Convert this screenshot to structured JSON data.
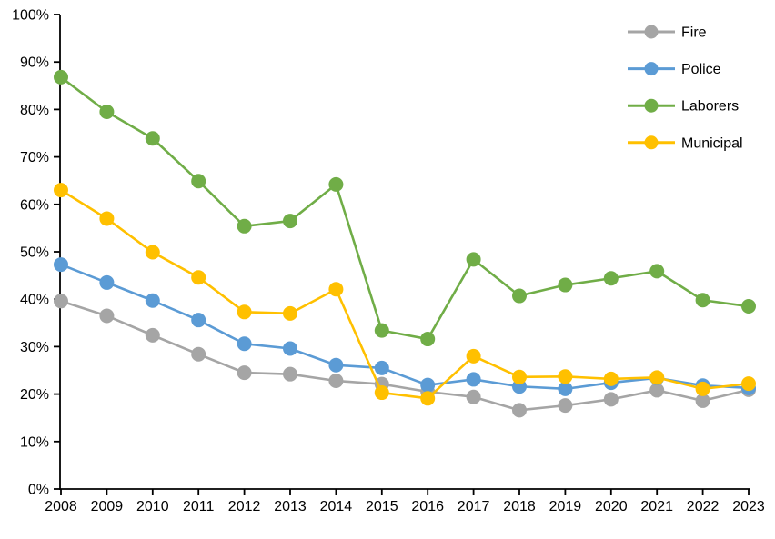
{
  "chart_data": {
    "type": "line",
    "title": "",
    "xlabel": "",
    "ylabel": "",
    "categories": [
      "2008",
      "2009",
      "2010",
      "2011",
      "2012",
      "2013",
      "2014",
      "2015",
      "2016",
      "2017",
      "2018",
      "2019",
      "2020",
      "2021",
      "2022",
      "2023"
    ],
    "series": [
      {
        "name": "Fire",
        "color": "#A5A5A5",
        "values": [
          39.6,
          36.5,
          32.4,
          28.4,
          24.5,
          24.2,
          22.8,
          22.1,
          20.5,
          19.4,
          16.6,
          17.6,
          18.9,
          20.8,
          18.6,
          20.9
        ]
      },
      {
        "name": "Police",
        "color": "#5B9BD5",
        "values": [
          47.3,
          43.5,
          39.7,
          35.6,
          30.6,
          29.6,
          26.1,
          25.5,
          21.9,
          23.1,
          21.6,
          21.1,
          22.4,
          23.4,
          21.8,
          21.3
        ]
      },
      {
        "name": "Laborers",
        "color": "#70AD47",
        "values": [
          86.8,
          79.5,
          73.9,
          64.9,
          55.4,
          56.5,
          64.2,
          33.4,
          31.6,
          48.4,
          40.7,
          43.0,
          44.4,
          45.9,
          39.8,
          38.5
        ]
      },
      {
        "name": "Municipal",
        "color": "#FFC000",
        "values": [
          63.0,
          57.0,
          49.9,
          44.6,
          37.3,
          37.0,
          42.1,
          20.3,
          19.1,
          28.0,
          23.6,
          23.7,
          23.2,
          23.5,
          21.1,
          22.2
        ]
      }
    ],
    "ylim": [
      0,
      100
    ],
    "ytick_step": 10,
    "ytick_suffix": "%",
    "ytick_labels": [
      "0%",
      "10%",
      "20%",
      "30%",
      "40%",
      "50%",
      "60%",
      "70%",
      "80%",
      "90%",
      "100%"
    ],
    "grid": false,
    "legend_position": "top-right",
    "legend_entries": [
      "Fire",
      "Police",
      "Laborers",
      "Municipal"
    ],
    "axis_color": "#000000",
    "text_color": "#000000",
    "marker": "circle"
  }
}
